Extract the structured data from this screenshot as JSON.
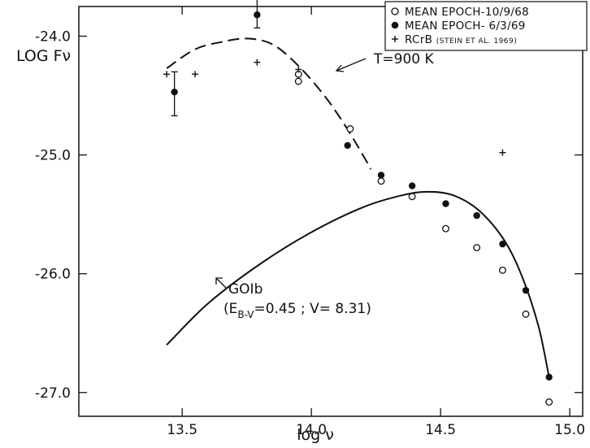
{
  "chart_data": {
    "type": "scatter",
    "title": "",
    "xlabel": "log ν",
    "ylabel": "LOG Fν",
    "xlim": [
      13.1,
      15.05
    ],
    "ylim": [
      -27.2,
      -23.75
    ],
    "x_ticks": [
      13.5,
      14.0,
      14.5,
      15.0
    ],
    "x_tick_labels": [
      "13.5",
      "14.0",
      "14.5",
      "15.0"
    ],
    "y_ticks": [
      -24.0,
      -25.0,
      -26.0,
      -27.0
    ],
    "y_tick_labels": [
      "-24.0",
      "-25.0",
      "-26.0",
      "-27.0"
    ],
    "grid": false,
    "legend_position": "top-right",
    "series": [
      {
        "name": "MEAN EPOCH-10/9/68",
        "marker": "open-circle",
        "points": [
          [
            13.95,
            -24.32
          ],
          [
            13.95,
            -24.38
          ],
          [
            14.15,
            -24.78
          ],
          [
            14.27,
            -25.22
          ],
          [
            14.39,
            -25.35
          ],
          [
            14.52,
            -25.62
          ],
          [
            14.64,
            -25.78
          ],
          [
            14.74,
            -25.97
          ],
          [
            14.83,
            -26.34
          ],
          [
            14.92,
            -27.08
          ]
        ]
      },
      {
        "name": "MEAN EPOCH- 6/3/69",
        "marker": "filled-circle",
        "points": [
          [
            13.47,
            -24.47
          ],
          [
            13.79,
            -23.82
          ],
          [
            14.14,
            -24.92
          ],
          [
            14.27,
            -25.17
          ],
          [
            14.39,
            -25.26
          ],
          [
            14.52,
            -25.41
          ],
          [
            14.64,
            -25.51
          ],
          [
            14.74,
            -25.75
          ],
          [
            14.83,
            -26.14
          ],
          [
            14.92,
            -26.87
          ]
        ],
        "error_bars": [
          {
            "x": 13.47,
            "low": -24.67,
            "high": -24.3
          },
          {
            "x": 13.79,
            "low": -23.93,
            "high": -23.64
          }
        ]
      },
      {
        "name": "RCrB",
        "name_note": "(STEIN ET AL. 1969)",
        "marker": "plus",
        "points": [
          [
            13.44,
            -24.32
          ],
          [
            13.55,
            -24.32
          ],
          [
            13.79,
            -24.22
          ],
          [
            13.95,
            -24.28
          ],
          [
            14.74,
            -24.98
          ]
        ]
      },
      {
        "name": "T=900 K",
        "type": "line",
        "style": "dashed",
        "points": [
          [
            13.44,
            -24.27
          ],
          [
            13.55,
            -24.11
          ],
          [
            13.65,
            -24.05
          ],
          [
            13.75,
            -24.02
          ],
          [
            13.85,
            -24.07
          ],
          [
            13.95,
            -24.25
          ],
          [
            14.05,
            -24.5
          ],
          [
            14.13,
            -24.75
          ],
          [
            14.21,
            -25.04
          ],
          [
            14.23,
            -25.12
          ]
        ]
      },
      {
        "name": "GOIb",
        "type": "line",
        "style": "solid",
        "points": [
          [
            13.44,
            -26.6
          ],
          [
            13.6,
            -26.25
          ],
          [
            13.8,
            -25.92
          ],
          [
            14.0,
            -25.65
          ],
          [
            14.2,
            -25.44
          ],
          [
            14.35,
            -25.34
          ],
          [
            14.45,
            -25.31
          ],
          [
            14.55,
            -25.34
          ],
          [
            14.65,
            -25.47
          ],
          [
            14.75,
            -25.73
          ],
          [
            14.82,
            -26.05
          ],
          [
            14.88,
            -26.45
          ],
          [
            14.92,
            -26.87
          ]
        ]
      }
    ],
    "annotations": {
      "bb_label": "T=900 K",
      "goib_label": "GOIb",
      "goib_params_open": "(E",
      "goib_params_sub": "B-V",
      "goib_params_rest": "=0.45 ; V= 8.31)"
    },
    "legend": [
      {
        "label": "MEAN EPOCH-10/9/68",
        "marker": "open-circle"
      },
      {
        "label": "MEAN EPOCH- 6/3/69",
        "marker": "filled-circle"
      },
      {
        "label": "RCrB",
        "note": "(STEIN ET AL. 1969)",
        "marker": "plus"
      }
    ]
  }
}
